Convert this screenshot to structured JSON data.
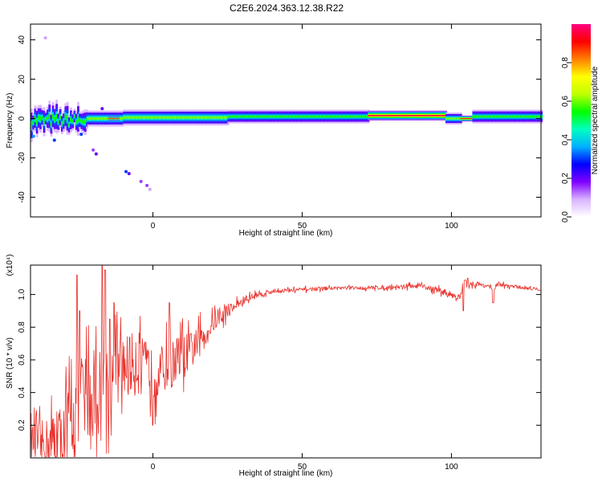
{
  "title": "C2E6.2024.363.12.38.R22",
  "chart_data": [
    {
      "type": "heatmap",
      "title": "C2E6.2024.363.12.38.R22",
      "xlabel": "Height of straight line (km)",
      "ylabel": "Frequency (Hz)",
      "xlim": [
        -41,
        130
      ],
      "ylim": [
        -50,
        48
      ],
      "xticks": [
        0,
        50,
        100
      ],
      "yticks": [
        -40,
        -20,
        0,
        20,
        40
      ],
      "grid": false,
      "colorbar": {
        "label": "Normalized spectral amplitude",
        "range": [
          0,
          1
        ],
        "ticks": [
          0.0,
          0.2,
          0.4,
          0.6,
          0.8
        ],
        "colors": [
          "#ffffff",
          "#d9b3ff",
          "#8000ff",
          "#0000ff",
          "#00b0ff",
          "#00ffc0",
          "#00ff00",
          "#c0ff00",
          "#ffff00",
          "#ff8000",
          "#ff0000",
          "#ff0080"
        ]
      },
      "band_segments": [
        {
          "x": [
            -41,
            -22
          ],
          "center_hz": -1,
          "halfwidth_hz": 6,
          "peak": 0.55,
          "note": "noisy blobs"
        },
        {
          "x": [
            -22,
            -10
          ],
          "center_hz": 0,
          "halfwidth_hz": 4,
          "peak": 0.6
        },
        {
          "x": [
            -15,
            -12
          ],
          "center_hz": 0,
          "halfwidth_hz": 1,
          "peak": 0.95
        },
        {
          "x": [
            -8,
            -4
          ],
          "center_hz": 0,
          "halfwidth_hz": 1,
          "peak": 0.95
        },
        {
          "x": [
            -10,
            25
          ],
          "center_hz": 0.5,
          "halfwidth_hz": 4,
          "peak": 0.6
        },
        {
          "x": [
            25,
            72
          ],
          "center_hz": 1,
          "halfwidth_hz": 3.5,
          "peak": 0.55
        },
        {
          "x": [
            72,
            98
          ],
          "center_hz": 1.5,
          "halfwidth_hz": 2.5,
          "peak": 0.95
        },
        {
          "x": [
            98,
            103
          ],
          "center_hz": 0,
          "halfwidth_hz": 3,
          "peak": 0.6
        },
        {
          "x": [
            103,
            107
          ],
          "center_hz": 0,
          "halfwidth_hz": 1.5,
          "peak": 0.95
        },
        {
          "x": [
            107,
            130
          ],
          "center_hz": 1,
          "halfwidth_hz": 3.5,
          "peak": 0.55
        }
      ],
      "scatter_points": [
        {
          "x": -36,
          "y": 41,
          "v": 0.1
        },
        {
          "x": -20,
          "y": -16,
          "v": 0.15
        },
        {
          "x": -19,
          "y": -18,
          "v": 0.2
        },
        {
          "x": -9,
          "y": -27,
          "v": 0.3
        },
        {
          "x": -8,
          "y": -28,
          "v": 0.2
        },
        {
          "x": -4,
          "y": -32,
          "v": 0.15
        },
        {
          "x": -2,
          "y": -34,
          "v": 0.15
        },
        {
          "x": -1,
          "y": -36,
          "v": 0.1
        },
        {
          "x": -40,
          "y": -9,
          "v": 0.35
        },
        {
          "x": -33,
          "y": -11,
          "v": 0.3
        },
        {
          "x": -24,
          "y": -8,
          "v": 0.3
        },
        {
          "x": -17,
          "y": 5,
          "v": 0.2
        }
      ]
    },
    {
      "type": "line",
      "xlabel": "Height of straight line (km)",
      "ylabel": "SNR (10 * v/v)",
      "y_multiplier": "(x10⁴)",
      "xlim": [
        -41,
        130
      ],
      "ylim": [
        0,
        1.18
      ],
      "xticks": [
        0,
        50,
        100
      ],
      "yticks": [
        0.2,
        0.4,
        0.6,
        0.8,
        1.0
      ],
      "grid": false,
      "series": [
        {
          "color": "#e8302a",
          "trend": {
            "x": [
              -41,
              -36,
              -31,
              -28,
              -25,
              -22,
              -18,
              -14,
              -10,
              -6,
              -2,
              0,
              4,
              8,
              12,
              16,
              20,
              25,
              30,
              35,
              40,
              50,
              60,
              70,
              80,
              85,
              90,
              95,
              100,
              103,
              104,
              105,
              110,
              113,
              114,
              115,
              120,
              125,
              130
            ],
            "y": [
              0.12,
              0.08,
              0.1,
              0.22,
              0.35,
              0.38,
              0.4,
              0.5,
              0.55,
              0.58,
              0.55,
              0.5,
              0.55,
              0.6,
              0.64,
              0.72,
              0.82,
              0.9,
              0.96,
              1.0,
              1.02,
              1.03,
              1.04,
              1.04,
              1.045,
              1.05,
              1.05,
              1.03,
              1.0,
              0.98,
              1.08,
              1.07,
              1.06,
              1.05,
              1.0,
              1.06,
              1.05,
              1.04,
              1.03
            ]
          },
          "noise": {
            "x": [
              -41,
              -30,
              -20,
              -10,
              0,
              10,
              20,
              30,
              40,
              60,
              90,
              98,
              105,
              130
            ],
            "amplitude": [
              0.12,
              0.35,
              0.4,
              0.3,
              0.22,
              0.2,
              0.08,
              0.04,
              0.02,
              0.015,
              0.02,
              0.03,
              0.025,
              0.012
            ]
          },
          "spikes": [
            {
              "x": -25.5,
              "y": 1.12
            },
            {
              "x": -24.5,
              "y": 0.9
            },
            {
              "x": -17,
              "y": 1.18
            },
            {
              "x": -16,
              "y": 1.15
            },
            {
              "x": -14.5,
              "y": 0.85
            },
            {
              "x": -13,
              "y": 0.95
            },
            {
              "x": 0,
              "y": 0.2
            },
            {
              "x": 5.5,
              "y": 0.95
            },
            {
              "x": 11,
              "y": 0.55
            },
            {
              "x": 104,
              "y": 0.9
            },
            {
              "x": 105.5,
              "y": 1.1
            },
            {
              "x": 114,
              "y": 0.95
            }
          ]
        }
      ]
    }
  ]
}
